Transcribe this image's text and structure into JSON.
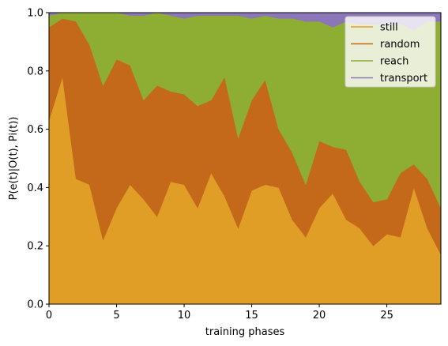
{
  "chart_data": {
    "type": "area",
    "stacked": true,
    "title": "",
    "xlabel": "training phases",
    "ylabel": "P(e(t)|O(t), Pi(t))",
    "xlim": [
      0,
      29
    ],
    "ylim": [
      0.0,
      1.0
    ],
    "xticks": [
      0,
      5,
      10,
      15,
      20,
      25
    ],
    "xtick_labels": [
      "0",
      "5",
      "10",
      "15",
      "20",
      "25"
    ],
    "yticks": [
      0.0,
      0.2,
      0.4,
      0.6,
      0.8,
      1.0
    ],
    "ytick_labels": [
      "0.0",
      "0.2",
      "0.4",
      "0.6",
      "0.8",
      "1.0"
    ],
    "grid": false,
    "legend_position": "top-right",
    "x": [
      0,
      1,
      2,
      3,
      4,
      5,
      6,
      7,
      8,
      9,
      10,
      11,
      12,
      13,
      14,
      15,
      16,
      17,
      18,
      19,
      20,
      21,
      22,
      23,
      24,
      25,
      26,
      27,
      28,
      29
    ],
    "series": [
      {
        "name": "still",
        "color": "#E09E27",
        "values": [
          0.63,
          0.78,
          0.43,
          0.41,
          0.22,
          0.33,
          0.41,
          0.36,
          0.3,
          0.42,
          0.41,
          0.33,
          0.45,
          0.37,
          0.26,
          0.39,
          0.41,
          0.4,
          0.29,
          0.23,
          0.33,
          0.38,
          0.29,
          0.26,
          0.2,
          0.24,
          0.23,
          0.4,
          0.26,
          0.17
        ]
      },
      {
        "name": "random",
        "color": "#C4691A",
        "values": [
          0.32,
          0.2,
          0.54,
          0.48,
          0.53,
          0.51,
          0.41,
          0.34,
          0.45,
          0.31,
          0.31,
          0.35,
          0.25,
          0.41,
          0.31,
          0.31,
          0.36,
          0.2,
          0.23,
          0.18,
          0.23,
          0.16,
          0.24,
          0.16,
          0.15,
          0.12,
          0.22,
          0.08,
          0.17,
          0.16
        ]
      },
      {
        "name": "reach",
        "color": "#8DAE33",
        "values": [
          0.04,
          0.02,
          0.03,
          0.11,
          0.25,
          0.16,
          0.17,
          0.29,
          0.25,
          0.26,
          0.26,
          0.31,
          0.29,
          0.21,
          0.42,
          0.28,
          0.22,
          0.38,
          0.46,
          0.56,
          0.41,
          0.41,
          0.44,
          0.54,
          0.61,
          0.6,
          0.51,
          0.46,
          0.54,
          0.64
        ]
      },
      {
        "name": "transport",
        "color": "#8B76B8",
        "values": [
          0.01,
          0.0,
          0.0,
          0.0,
          0.0,
          0.0,
          0.01,
          0.01,
          0.0,
          0.01,
          0.02,
          0.01,
          0.01,
          0.01,
          0.01,
          0.02,
          0.01,
          0.02,
          0.02,
          0.03,
          0.03,
          0.05,
          0.03,
          0.04,
          0.04,
          0.04,
          0.04,
          0.06,
          0.03,
          0.03
        ]
      }
    ]
  }
}
